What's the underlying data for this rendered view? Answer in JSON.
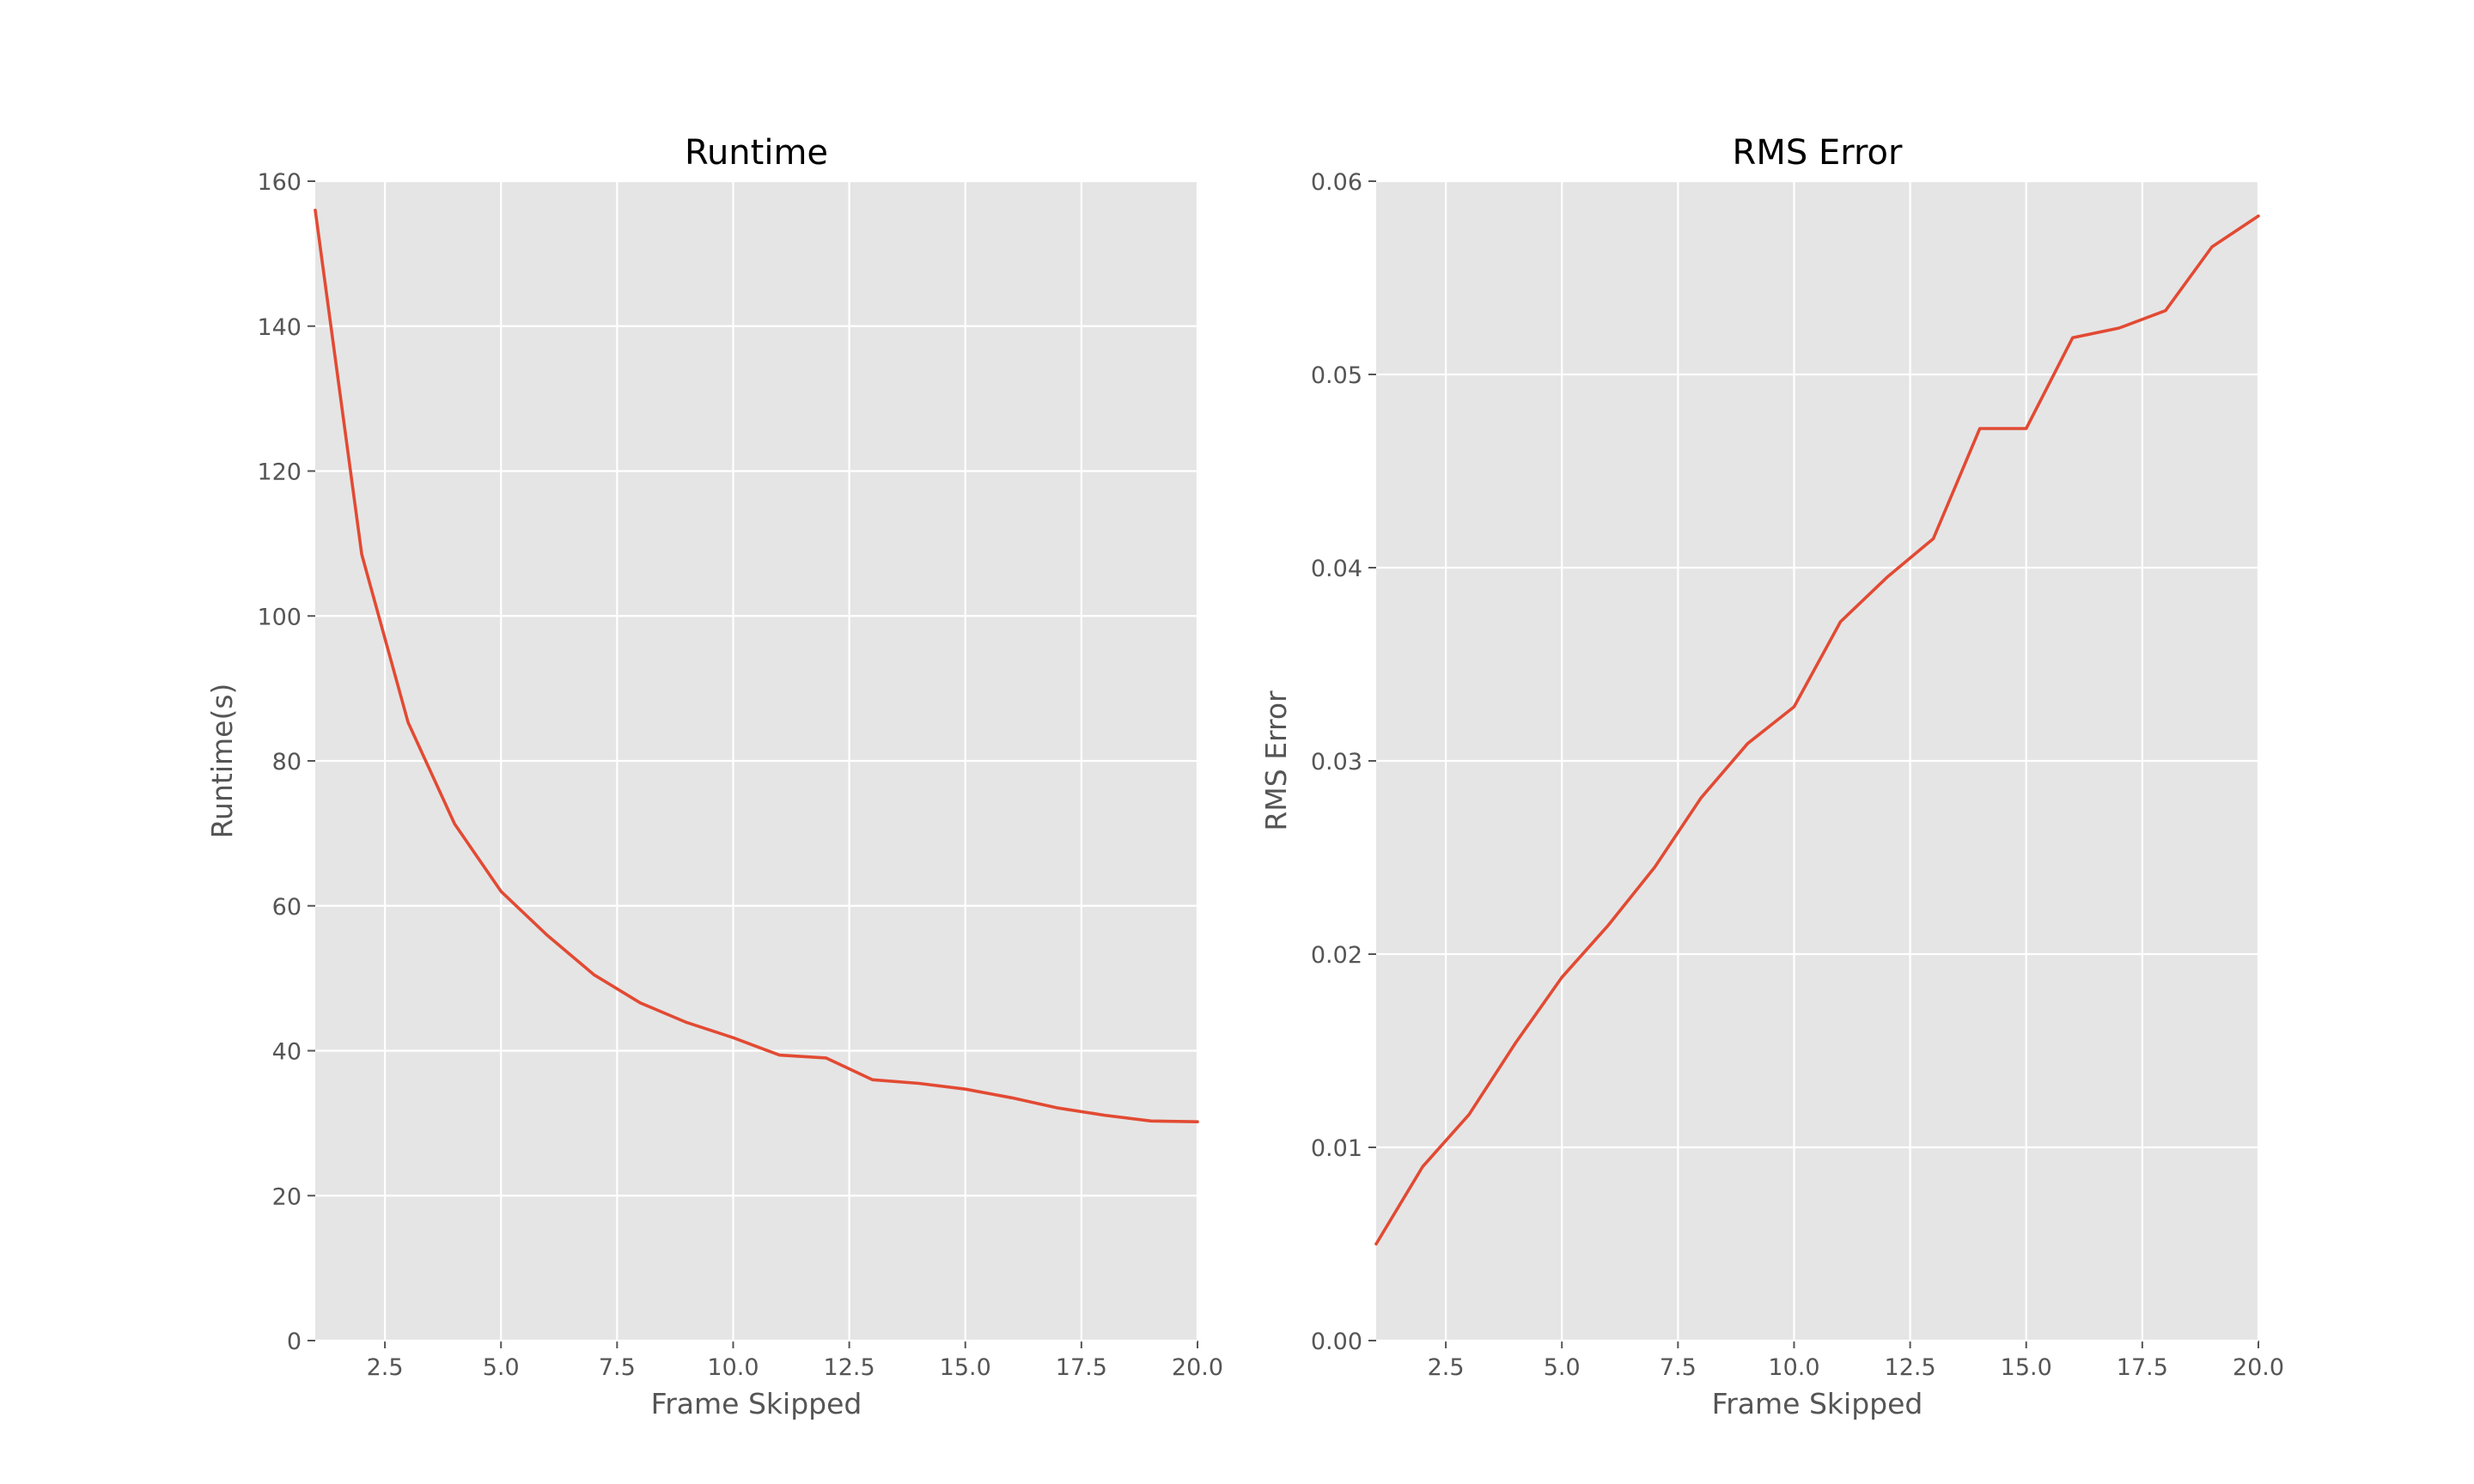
{
  "chart_data": [
    {
      "type": "line",
      "title": "Runtime",
      "xlabel": "Frame Skipped",
      "ylabel": "Runtime(s)",
      "xlim": [
        1,
        20
      ],
      "ylim": [
        0,
        160
      ],
      "xticks": [
        "2.5",
        "5.0",
        "7.5",
        "10.0",
        "12.5",
        "15.0",
        "17.5",
        "20.0"
      ],
      "yticks": [
        "0",
        "20",
        "40",
        "60",
        "80",
        "100",
        "120",
        "140",
        "160"
      ],
      "grid": true,
      "series": [
        {
          "color": "#E24A33",
          "x": [
            1,
            2,
            3,
            4,
            5,
            6,
            7,
            8,
            9,
            10,
            11,
            12,
            13,
            14,
            15,
            16,
            17,
            18,
            19,
            20
          ],
          "y": [
            156,
            108.5,
            85.3,
            71.3,
            62,
            55.9,
            50.5,
            46.6,
            43.9,
            41.8,
            39.4,
            39,
            36,
            35.5,
            34.7,
            33.5,
            32.1,
            31.1,
            30.3,
            30.2
          ]
        }
      ]
    },
    {
      "type": "line",
      "title": "RMS Error",
      "xlabel": "Frame Skipped",
      "ylabel": "RMS Error",
      "xlim": [
        1,
        20
      ],
      "ylim": [
        0,
        0.06
      ],
      "xticks": [
        "2.5",
        "5.0",
        "7.5",
        "10.0",
        "12.5",
        "15.0",
        "17.5",
        "20.0"
      ],
      "yticks": [
        "0.00",
        "0.01",
        "0.02",
        "0.03",
        "0.04",
        "0.05",
        "0.06"
      ],
      "grid": true,
      "series": [
        {
          "color": "#E24A33",
          "x": [
            1,
            2,
            3,
            4,
            5,
            6,
            7,
            8,
            9,
            10,
            11,
            12,
            13,
            14,
            15,
            16,
            17,
            18,
            19,
            20
          ],
          "y": [
            0.005,
            0.009,
            0.0117,
            0.0154,
            0.0188,
            0.0215,
            0.0245,
            0.0281,
            0.0309,
            0.0328,
            0.0372,
            0.0395,
            0.0415,
            0.0472,
            0.0472,
            0.0519,
            0.0524,
            0.0533,
            0.0566,
            0.0582
          ]
        }
      ]
    }
  ]
}
